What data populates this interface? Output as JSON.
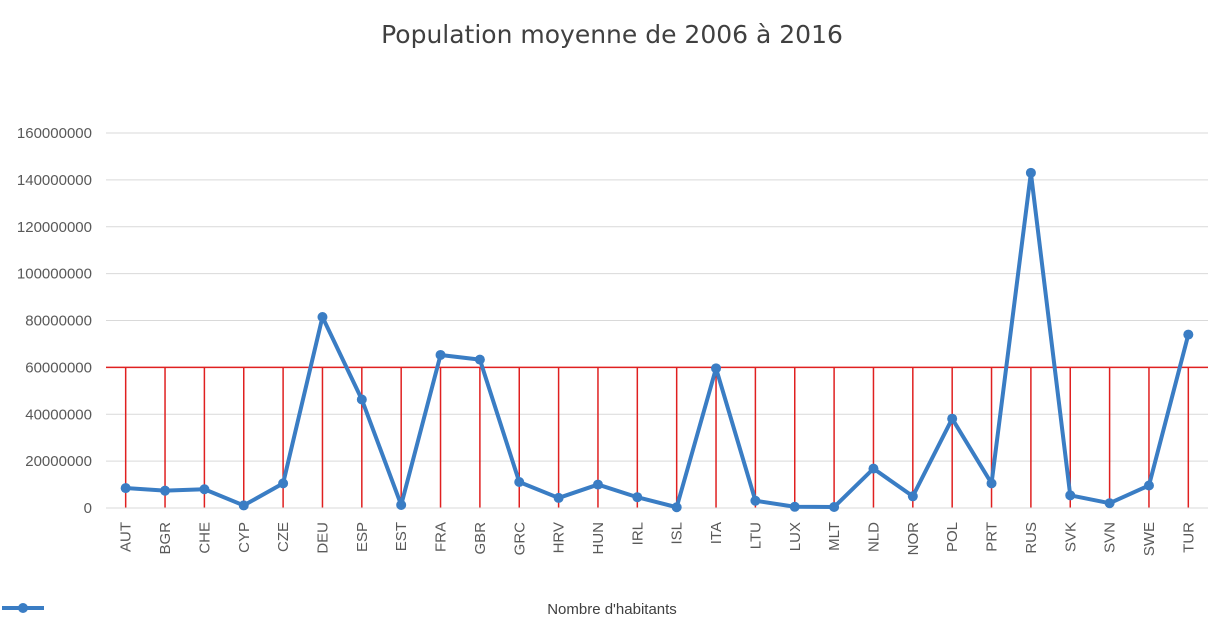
{
  "chart_data": {
    "type": "line",
    "title": "Population moyenne de 2006 à 2016",
    "xlabel": "",
    "ylabel": "",
    "ylim": [
      0,
      160000000
    ],
    "yticks": [
      "0",
      "20000000",
      "40000000",
      "60000000",
      "80000000",
      "100000000",
      "120000000",
      "140000000",
      "160000000"
    ],
    "grid": "horizontal",
    "legend_position": "bottom",
    "categories": [
      "AUT",
      "BGR",
      "CHE",
      "CYP",
      "CZE",
      "DEU",
      "ESP",
      "EST",
      "FRA",
      "GBR",
      "GRC",
      "HRV",
      "HUN",
      "IRL",
      "ISL",
      "ITA",
      "LTU",
      "LUX",
      "MLT",
      "NLD",
      "NOR",
      "POL",
      "PRT",
      "RUS",
      "SVK",
      "SVN",
      "SWE",
      "TUR"
    ],
    "series": [
      {
        "name": "Nombre d'habitants",
        "color": "#3a7dc4",
        "values": [
          8500000,
          7400000,
          8000000,
          1100000,
          10500000,
          81500000,
          46300000,
          1300000,
          65300000,
          63300000,
          11100000,
          4300000,
          10000000,
          4600000,
          320000,
          59600000,
          3100000,
          520000,
          420000,
          16800000,
          5000000,
          38100000,
          10500000,
          143000000,
          5400000,
          2050000,
          9600000,
          74000000
        ]
      }
    ],
    "reference": {
      "value": 60000000,
      "color": "#e02020"
    }
  }
}
